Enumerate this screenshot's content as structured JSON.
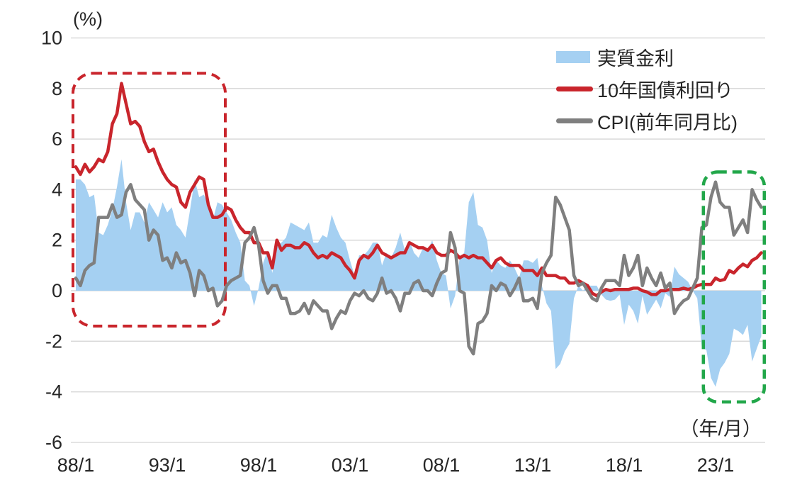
{
  "chart_data": {
    "type": "area+line",
    "title": "",
    "y_axis_unit": "(%)",
    "x_axis_unit": "（年/月）",
    "ylim": [
      -6,
      10
    ],
    "y_ticks": [
      10,
      8,
      6,
      4,
      2,
      0,
      -2,
      -4,
      -6
    ],
    "x_ticks": [
      "88/1",
      "93/1",
      "98/1",
      "03/1",
      "08/1",
      "13/1",
      "18/1",
      "23/1"
    ],
    "x_start": "88/1",
    "x_end": "25/7",
    "x_resolution": "quarterly",
    "grid": true,
    "legend_position": "top-right-inside",
    "colors": {
      "area_blue": "#A5D0F2",
      "line_red": "#C9252C",
      "line_gray": "#7F7F7F",
      "annotation_red": "#C9252C",
      "annotation_green": "#22A74A",
      "gridline": "#D9D9D9",
      "text": "#262626"
    },
    "legend": [
      {
        "label": "実質金利",
        "type": "area",
        "color": "#A5D0F2"
      },
      {
        "label": "10年国債利回り",
        "type": "line",
        "color": "#C9252C"
      },
      {
        "label": "CPI(前年同月比)",
        "type": "line",
        "color": "#7F7F7F"
      }
    ],
    "series": [
      {
        "name": "実質金利",
        "type": "area",
        "color": "#A5D0F2",
        "values": [
          4.4,
          4.4,
          4.2,
          3.7,
          3.8,
          2.3,
          2.2,
          2.6,
          3.2,
          4.1,
          5.2,
          3.5,
          2.4,
          3.1,
          3.1,
          2.7,
          3.5,
          3.2,
          2.9,
          3.5,
          3.1,
          3.3,
          2.6,
          2.4,
          2.1,
          3.2,
          4.4,
          3.7,
          3.8,
          3.4,
          2.8,
          3.5,
          3.4,
          3.1,
          2.8,
          2.3,
          1.9,
          0.4,
          0.2,
          -0.6,
          0.1,
          1.1,
          1.6,
          0.7,
          1.8,
          1.9,
          2.1,
          2.7,
          2.6,
          2.5,
          2.4,
          2.7,
          1.9,
          1.9,
          2.2,
          2.1,
          3.0,
          2.5,
          2.1,
          1.9,
          1.2,
          0.6,
          1.4,
          1.4,
          1.6,
          1.9,
          1.9,
          1.0,
          1.5,
          1.3,
          1.7,
          2.3,
          1.6,
          2.0,
          1.5,
          1.3,
          1.7,
          1.6,
          2.0,
          1.2,
          0.7,
          0.6,
          -0.7,
          -0.2,
          1.3,
          1.5,
          3.5,
          3.9,
          2.6,
          2.5,
          2.0,
          0.7,
          1.2,
          1.0,
          0.9,
          1.2,
          0.9,
          0.5,
          1.2,
          1.2,
          1.1,
          1.3,
          0.2,
          -0.5,
          -0.8,
          -3.1,
          -2.9,
          -2.4,
          -2.1,
          -0.3,
          0.2,
          0.0,
          0.2,
          0.2,
          0.2,
          -0.15,
          -0.35,
          -0.4,
          -0.35,
          -0.15,
          -1.35,
          -0.55,
          -0.8,
          -1.3,
          -0.2,
          -0.95,
          -0.65,
          -0.35,
          -0.7,
          -0.1,
          -0.25,
          0.95,
          0.65,
          0.5,
          0.35,
          0.0,
          -0.3,
          -2.25,
          -2.35,
          -3.45,
          -3.8,
          -3.1,
          -2.85,
          -2.5,
          -1.5,
          -1.6,
          -1.75,
          -1.35,
          -2.8,
          -2.3,
          -1.8
        ]
      },
      {
        "name": "10年国債利回り",
        "type": "line",
        "color": "#C9252C",
        "values": [
          4.9,
          4.6,
          5.0,
          4.7,
          4.9,
          5.2,
          5.1,
          5.5,
          6.6,
          7.0,
          8.2,
          7.4,
          6.6,
          6.7,
          6.5,
          5.9,
          5.5,
          5.6,
          5.1,
          4.7,
          4.4,
          4.2,
          4.1,
          3.5,
          3.3,
          3.9,
          4.2,
          4.5,
          4.4,
          3.4,
          2.9,
          2.9,
          3.0,
          3.3,
          3.2,
          2.8,
          2.5,
          2.3,
          2.3,
          1.9,
          1.9,
          1.5,
          1.5,
          0.9,
          2.0,
          1.6,
          1.8,
          1.8,
          1.7,
          1.7,
          1.9,
          1.8,
          1.5,
          1.3,
          1.4,
          1.3,
          1.5,
          1.4,
          1.3,
          1.0,
          0.8,
          0.5,
          1.2,
          1.4,
          1.3,
          1.5,
          1.8,
          1.5,
          1.4,
          1.3,
          1.4,
          1.5,
          1.5,
          1.9,
          1.8,
          1.7,
          1.7,
          1.6,
          1.8,
          1.5,
          1.4,
          1.4,
          1.6,
          1.5,
          1.3,
          1.4,
          1.3,
          1.4,
          1.3,
          1.3,
          1.1,
          0.9,
          1.2,
          1.3,
          1.1,
          1.0,
          1.0,
          1.0,
          0.8,
          0.8,
          0.8,
          0.6,
          0.9,
          0.6,
          0.6,
          0.6,
          0.5,
          0.5,
          0.3,
          0.3,
          0.4,
          0.3,
          0.2,
          -0.1,
          -0.2,
          -0.05,
          0.05,
          0.0,
          0.05,
          0.05,
          0.05,
          0.05,
          0.1,
          0.1,
          0.0,
          -0.05,
          -0.15,
          -0.15,
          0.0,
          0.0,
          0.05,
          0.05,
          0.05,
          0.1,
          0.05,
          0.1,
          0.2,
          0.25,
          0.25,
          0.25,
          0.5,
          0.4,
          0.45,
          0.8,
          0.7,
          0.9,
          1.05,
          0.95,
          1.2,
          1.3,
          1.5
        ]
      },
      {
        "name": "CPI(前年同月比)",
        "type": "line",
        "color": "#7F7F7F",
        "values": [
          0.5,
          0.2,
          0.8,
          1.0,
          1.1,
          2.9,
          2.9,
          2.9,
          3.4,
          2.9,
          3.0,
          3.9,
          4.2,
          3.6,
          3.4,
          3.2,
          2.0,
          2.4,
          2.2,
          1.2,
          1.3,
          0.9,
          1.5,
          1.1,
          1.2,
          0.7,
          -0.2,
          0.8,
          0.6,
          0.0,
          0.1,
          -0.6,
          -0.4,
          0.2,
          0.4,
          0.5,
          0.6,
          1.9,
          2.1,
          2.5,
          1.8,
          0.4,
          -0.1,
          0.2,
          0.2,
          -0.3,
          -0.3,
          -0.9,
          -0.9,
          -0.8,
          -0.5,
          -0.9,
          -0.4,
          -0.6,
          -0.8,
          -0.8,
          -1.5,
          -1.1,
          -0.8,
          -0.9,
          -0.4,
          -0.1,
          -0.2,
          0.0,
          -0.3,
          -0.4,
          -0.1,
          0.5,
          -0.1,
          0.0,
          -0.3,
          -0.8,
          -0.1,
          -0.1,
          0.3,
          0.4,
          0.0,
          0.0,
          -0.2,
          0.3,
          0.7,
          0.8,
          2.3,
          1.7,
          0.0,
          -0.1,
          -2.2,
          -2.5,
          -1.3,
          -1.2,
          -0.9,
          0.2,
          0.0,
          0.3,
          0.2,
          -0.2,
          0.1,
          0.5,
          -0.4,
          -0.4,
          -0.3,
          -0.7,
          0.7,
          1.1,
          1.4,
          3.7,
          3.4,
          2.9,
          2.4,
          0.6,
          0.2,
          0.3,
          0.0,
          -0.3,
          -0.4,
          0.1,
          0.4,
          0.4,
          0.4,
          0.2,
          1.4,
          0.6,
          0.9,
          1.4,
          0.2,
          0.9,
          0.5,
          0.2,
          0.7,
          0.1,
          0.3,
          -0.9,
          -0.6,
          -0.4,
          -0.3,
          0.1,
          0.5,
          2.5,
          2.6,
          3.7,
          4.3,
          3.5,
          3.3,
          3.3,
          2.2,
          2.5,
          2.8,
          2.3,
          4.0,
          3.6,
          3.3
        ]
      }
    ],
    "annotations": [
      {
        "name": "bubble-era-box",
        "type": "dashed-box",
        "color": "#C9252C",
        "x_from": "88/1",
        "x_to": "96/5",
        "y_from": -1.4,
        "y_to": 8.6
      },
      {
        "name": "recent-inflation-box",
        "type": "dashed-box",
        "color": "#22A74A",
        "x_from": "22/5",
        "x_to": "25/9",
        "y_from": -4.4,
        "y_to": 4.7
      }
    ]
  }
}
